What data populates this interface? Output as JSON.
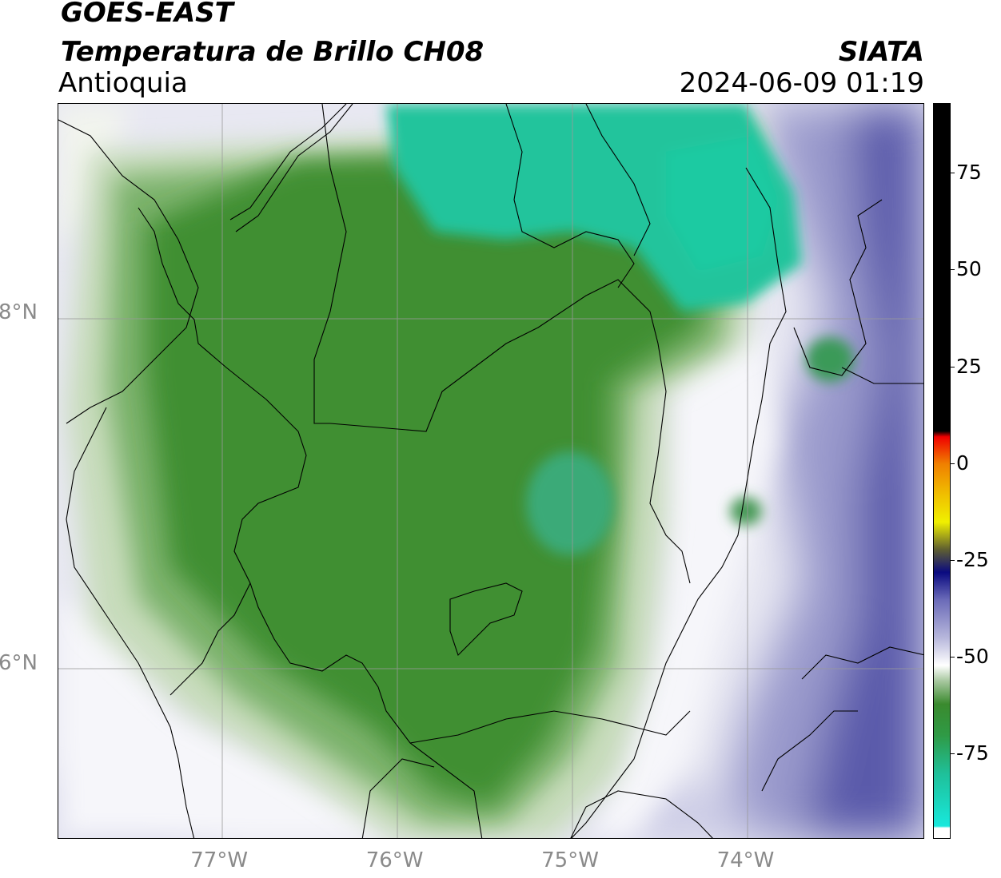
{
  "header": {
    "satellite": "GOES-EAST",
    "product": "Temperatura de Brillo CH08",
    "region": "Antioquia",
    "agency": "SIATA",
    "datetime": "2024-06-09 01:19"
  },
  "map": {
    "lon_range": [
      -77.94,
      -73.0
    ],
    "lat_range": [
      5.0,
      9.2
    ],
    "grid": true,
    "lon_ticks": [
      {
        "value": -77,
        "label": "77°W"
      },
      {
        "value": -76,
        "label": "76°W"
      },
      {
        "value": -75,
        "label": "75°W"
      },
      {
        "value": -74,
        "label": "74°W"
      }
    ],
    "lat_ticks": [
      {
        "value": 8,
        "label": "8°N"
      },
      {
        "value": 6,
        "label": "6°N"
      }
    ]
  },
  "colorbar": {
    "range": [
      -97,
      93
    ],
    "ticks": [
      {
        "value": 75,
        "label": "75"
      },
      {
        "value": 50,
        "label": "50"
      },
      {
        "value": 25,
        "label": "25"
      },
      {
        "value": 0,
        "label": "0"
      },
      {
        "value": -25,
        "label": "-25"
      },
      {
        "value": -50,
        "label": "-50"
      },
      {
        "value": -75,
        "label": "-75"
      }
    ],
    "stops": [
      {
        "value": -97,
        "color": "#ffffff"
      },
      {
        "value": -94,
        "color": "#ffffff"
      },
      {
        "value": -93.5,
        "color": "#18e8dc"
      },
      {
        "value": -80,
        "color": "#1fc09a"
      },
      {
        "value": -70,
        "color": "#2f9a45"
      },
      {
        "value": -62,
        "color": "#3a8a2e"
      },
      {
        "value": -56,
        "color": "#a8c8a0"
      },
      {
        "value": -52,
        "color": "#ffffff"
      },
      {
        "value": -45,
        "color": "#b8b8dc"
      },
      {
        "value": -35,
        "color": "#6a6ab8"
      },
      {
        "value": -28,
        "color": "#0a0a80"
      },
      {
        "value": -22,
        "color": "#606030"
      },
      {
        "value": -15,
        "color": "#f0f000"
      },
      {
        "value": -8,
        "color": "#f0c000"
      },
      {
        "value": 0,
        "color": "#f08000"
      },
      {
        "value": 7,
        "color": "#f00000"
      },
      {
        "value": 8.5,
        "color": "#000000"
      },
      {
        "value": 93,
        "color": "#000000"
      }
    ]
  },
  "colors": {
    "cold_core": "#1fc09a",
    "deep_green": "#3a8a2e",
    "mid_green": "#78ae68",
    "pale_green": "#c4dcbc",
    "white": "#f4f4f8",
    "light_lavender": "#c8c8e4",
    "lavender": "#9090c8",
    "dark_blue": "#5858a8",
    "grid": "#9a9a9a"
  }
}
